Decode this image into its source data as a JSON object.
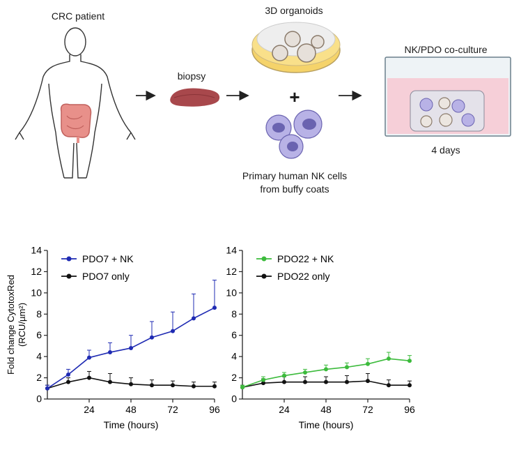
{
  "schematic": {
    "patient_label": "CRC patient",
    "biopsy_label": "biopsy",
    "organoids_label": "3D organoids",
    "plus": "+",
    "nk_label_line1": "Primary human NK cells",
    "nk_label_line2": "from buffy coats",
    "coculture_label": "NK/PDO co-culture",
    "duration_label": "4 days",
    "colors": {
      "tumor": "#a8484c",
      "dish_fill": "#f5d36a",
      "medium": "#f6cfd8",
      "nk_cell": "#9c94d6"
    },
    "icons": [
      "human-body-icon",
      "colon-icon",
      "biopsy-tissue-icon",
      "petri-dish-icon",
      "nk-cell-icon",
      "culture-well-icon",
      "arrow-icon"
    ]
  },
  "chart_data": [
    {
      "type": "line",
      "ylabel_line1": "Fold change CytotoxRed",
      "ylabel_line2": "(RCU/µm²)",
      "xlabel": "Time (hours)",
      "xlim": [
        0,
        96
      ],
      "ylim": [
        0,
        14
      ],
      "xticks": [
        "24",
        "48",
        "72",
        "96"
      ],
      "yticks": [
        "0",
        "2",
        "4",
        "6",
        "8",
        "10",
        "12",
        "14"
      ],
      "legend_position": "top-left",
      "series": [
        {
          "name": "PDO7 + NK",
          "color": "#1f2bb3",
          "x": [
            0,
            12,
            24,
            36,
            48,
            60,
            72,
            84,
            96
          ],
          "y": [
            1.0,
            2.3,
            3.9,
            4.4,
            4.8,
            5.8,
            6.4,
            7.6,
            8.6
          ],
          "err": [
            0.3,
            0.5,
            0.7,
            0.9,
            1.2,
            1.5,
            1.8,
            2.3,
            2.6
          ]
        },
        {
          "name": "PDO7 only",
          "color": "#111111",
          "x": [
            0,
            12,
            24,
            36,
            48,
            60,
            72,
            84,
            96
          ],
          "y": [
            1.0,
            1.6,
            2.0,
            1.6,
            1.4,
            1.3,
            1.3,
            1.2,
            1.2
          ],
          "err": [
            0.3,
            0.4,
            0.6,
            0.8,
            0.6,
            0.5,
            0.4,
            0.4,
            0.4
          ]
        }
      ]
    },
    {
      "type": "line",
      "xlabel": "Time (hours)",
      "xlim": [
        0,
        96
      ],
      "ylim": [
        0,
        14
      ],
      "xticks": [
        "24",
        "48",
        "72",
        "96"
      ],
      "yticks": [
        "0",
        "2",
        "4",
        "6",
        "8",
        "10",
        "12",
        "14"
      ],
      "legend_position": "top-left",
      "series": [
        {
          "name": "PDO22 + NK",
          "color": "#3cbb3c",
          "x": [
            0,
            12,
            24,
            36,
            48,
            60,
            72,
            84,
            96
          ],
          "y": [
            1.1,
            1.8,
            2.2,
            2.5,
            2.8,
            3.0,
            3.3,
            3.8,
            3.6
          ],
          "err": [
            0.2,
            0.3,
            0.3,
            0.3,
            0.4,
            0.4,
            0.5,
            0.6,
            0.5
          ]
        },
        {
          "name": "PDO22 only",
          "color": "#111111",
          "x": [
            0,
            12,
            24,
            36,
            48,
            60,
            72,
            84,
            96
          ],
          "y": [
            1.1,
            1.5,
            1.6,
            1.6,
            1.6,
            1.6,
            1.7,
            1.3,
            1.3
          ],
          "err": [
            0.2,
            0.4,
            0.5,
            0.5,
            0.5,
            0.6,
            0.7,
            0.5,
            0.4
          ]
        }
      ]
    }
  ]
}
